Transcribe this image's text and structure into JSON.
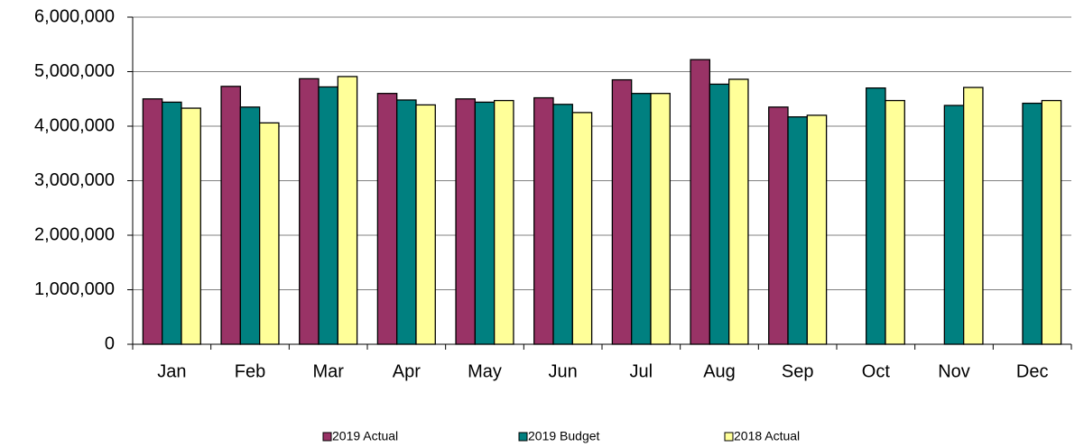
{
  "chart_data": {
    "type": "bar",
    "categories": [
      "Jan",
      "Feb",
      "Mar",
      "Apr",
      "May",
      "Jun",
      "Jul",
      "Aug",
      "Sep",
      "Oct",
      "Nov",
      "Dec"
    ],
    "series": [
      {
        "name": "2019 Actual",
        "color": "#993366",
        "values": [
          4500000,
          4730000,
          4870000,
          4600000,
          4500000,
          4520000,
          4850000,
          5220000,
          4350000,
          null,
          null,
          null
        ]
      },
      {
        "name": "2019 Budget",
        "color": "#008080",
        "values": [
          4440000,
          4350000,
          4720000,
          4480000,
          4440000,
          4400000,
          4600000,
          4770000,
          4170000,
          4700000,
          4380000,
          4420000
        ]
      },
      {
        "name": "2018 Actual",
        "color": "#ffff99",
        "values": [
          4330000,
          4060000,
          4910000,
          4390000,
          4470000,
          4250000,
          4600000,
          4860000,
          4200000,
          4470000,
          4710000,
          4470000
        ]
      }
    ],
    "ylim": [
      0,
      6000000
    ],
    "yticks": [
      0,
      {
        "value": 1000000,
        "label": "1,000,000"
      },
      {
        "value": 2000000,
        "label": "2,000,000"
      },
      {
        "value": 3000000,
        "label": "3,000,000"
      },
      {
        "value": 4000000,
        "label": "4,000,000"
      },
      {
        "value": 5000000,
        "label": "5,000,000"
      },
      {
        "value": 6000000,
        "label": "6,000,000"
      }
    ],
    "grid": true,
    "legend": "bottom"
  }
}
